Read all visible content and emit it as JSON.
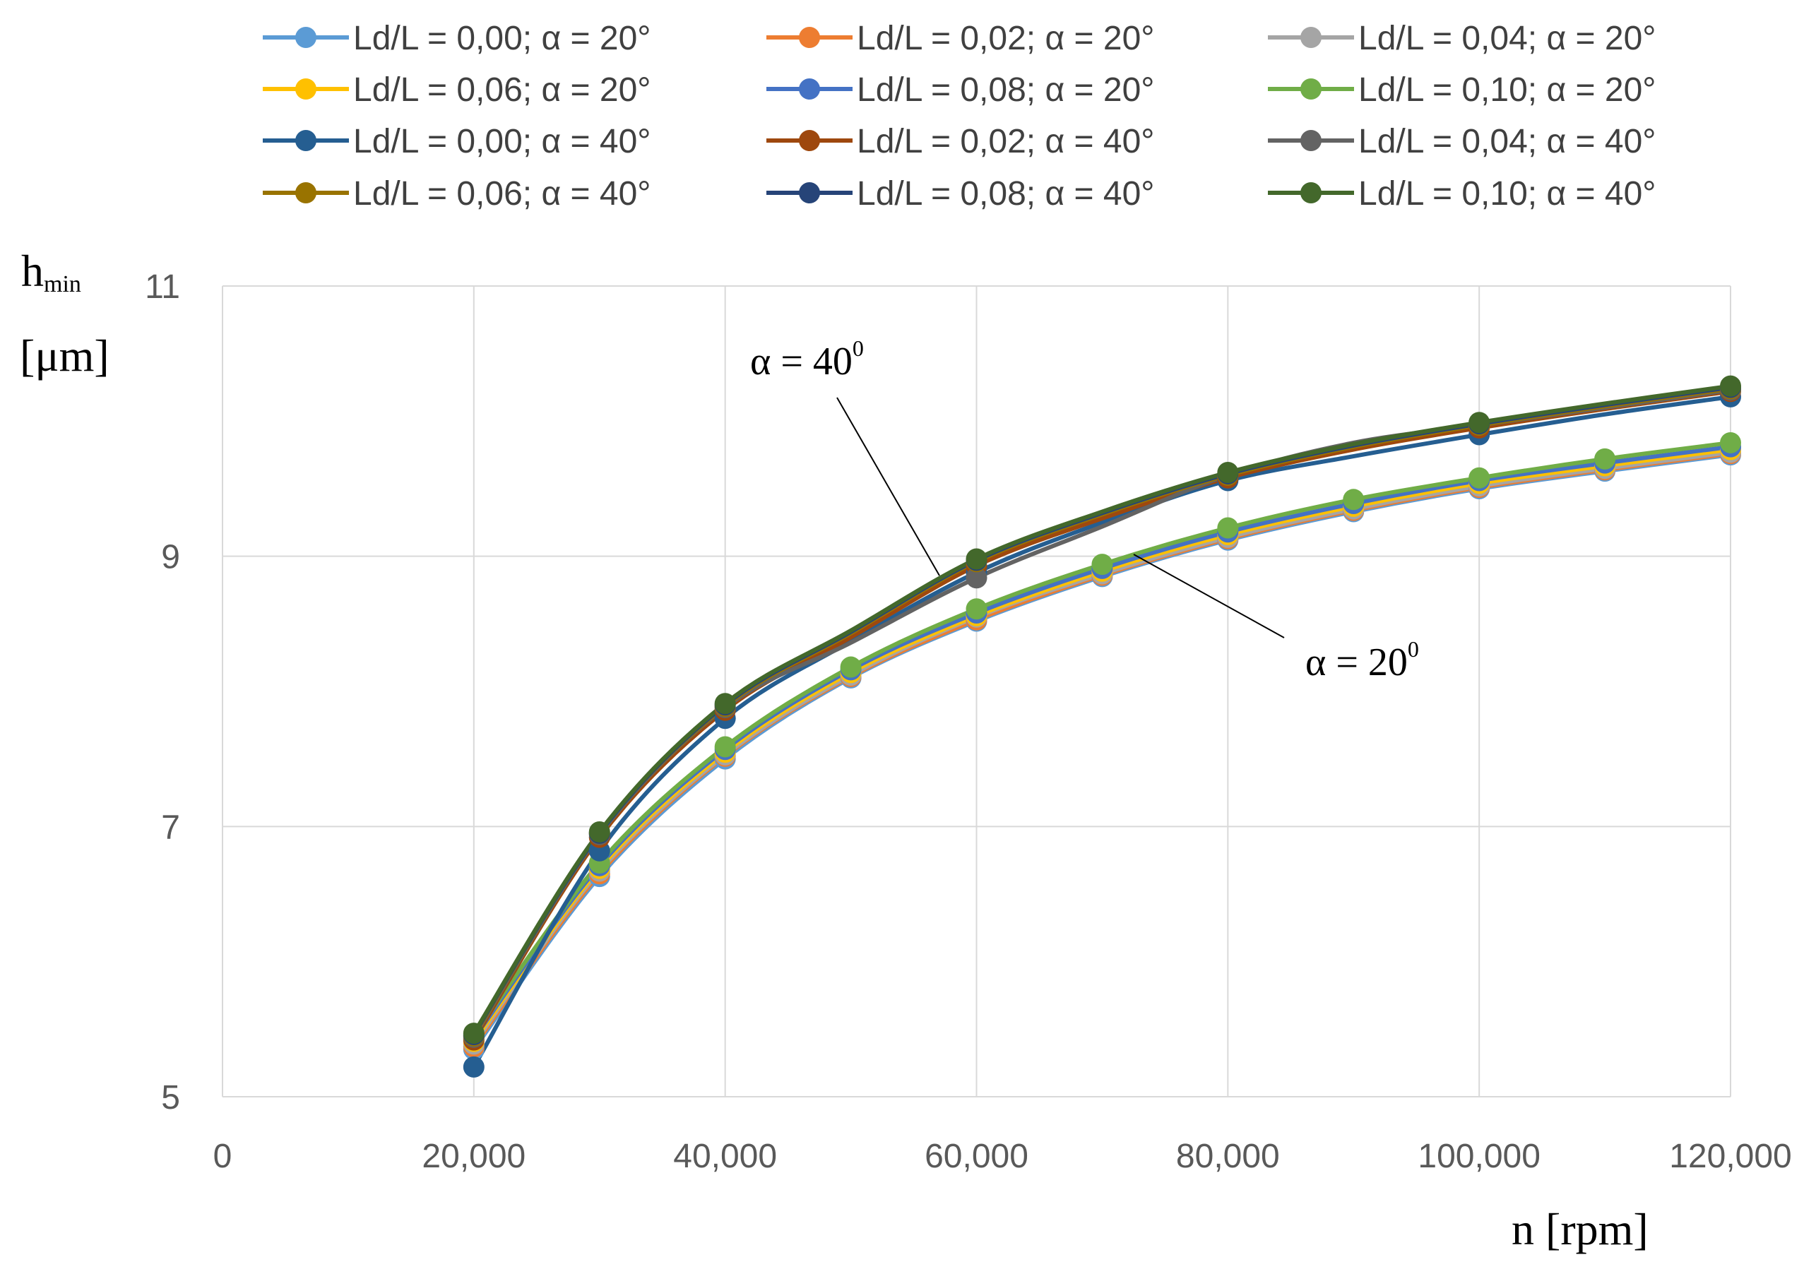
{
  "chart_data": {
    "type": "line",
    "title": "",
    "xlabel": "n [rpm]",
    "ylabel": {
      "main": "h",
      "sub": "min",
      "unit": "[μm]"
    },
    "xlim": [
      0,
      120000
    ],
    "ylim": [
      5,
      11
    ],
    "x_ticks": [
      0,
      20000,
      40000,
      60000,
      80000,
      100000,
      120000
    ],
    "x_tick_labels": [
      "0",
      "20,000",
      "40,000",
      "60,000",
      "80,000",
      "100,000",
      "120,000"
    ],
    "y_ticks": [
      5,
      7,
      9,
      11
    ],
    "y_tick_labels": [
      "5",
      "7",
      "9",
      "11"
    ],
    "grid": true,
    "legend_position": "top",
    "x": [
      20000,
      30000,
      40000,
      50000,
      60000,
      70000,
      80000,
      90000,
      100000,
      110000,
      120000
    ],
    "series": [
      {
        "name": "Ld/L = 0,00; α = 20°",
        "color": "#5B9BD5",
        "values": [
          5.35,
          6.63,
          7.5,
          8.1,
          8.52,
          8.85,
          9.12,
          9.33,
          9.5,
          9.63,
          9.75
        ]
      },
      {
        "name": "Ld/L = 0,02; α = 20°",
        "color": "#ED7D31",
        "values": [
          5.37,
          6.65,
          7.52,
          8.11,
          8.53,
          8.86,
          9.13,
          9.34,
          9.51,
          9.64,
          9.76
        ]
      },
      {
        "name": "Ld/L = 0,04; α = 20°",
        "color": "#A5A5A5",
        "values": [
          5.39,
          6.67,
          7.53,
          8.12,
          8.55,
          8.87,
          9.14,
          9.35,
          9.52,
          9.65,
          9.77
        ]
      },
      {
        "name": "Ld/L = 0,06; α = 20°",
        "color": "#FFC000",
        "values": [
          5.41,
          6.69,
          7.55,
          8.14,
          8.56,
          8.89,
          9.16,
          9.37,
          9.54,
          9.67,
          9.79
        ]
      },
      {
        "name": "Ld/L = 0,08; α = 20°",
        "color": "#4472C4",
        "values": [
          5.43,
          6.71,
          7.57,
          8.16,
          8.58,
          8.91,
          9.18,
          9.39,
          9.56,
          9.69,
          9.81
        ]
      },
      {
        "name": "Ld/L = 0,10; α = 20°",
        "color": "#70AD47",
        "values": [
          5.45,
          6.73,
          7.59,
          8.18,
          8.61,
          8.94,
          9.21,
          9.42,
          9.58,
          9.72,
          9.84
        ]
      },
      {
        "name": "Ld/L = 0,00; α = 40°",
        "color": "#255E91",
        "values": [
          5.22,
          6.82,
          7.8,
          8.37,
          8.88,
          9.25,
          9.56,
          9.74,
          9.9,
          10.05,
          10.18
        ]
      },
      {
        "name": "Ld/L = 0,02; α = 40°",
        "color": "#9E480E",
        "values": [
          5.42,
          6.92,
          7.86,
          8.4,
          8.93,
          9.28,
          9.58,
          9.79,
          9.95,
          10.09,
          10.22
        ]
      },
      {
        "name": "Ld/L = 0,04; α = 40°",
        "color": "#636363",
        "values": [
          5.44,
          6.94,
          7.88,
          8.36,
          8.84,
          9.22,
          9.6,
          9.84,
          9.97,
          10.1,
          10.23
        ]
      },
      {
        "name": "Ld/L = 0,06; α = 40°",
        "color": "#997300",
        "values": [
          5.45,
          6.95,
          7.89,
          8.43,
          8.96,
          9.31,
          9.6,
          9.81,
          9.97,
          10.11,
          10.24
        ]
      },
      {
        "name": "Ld/L = 0,08; α = 40°",
        "color": "#264478",
        "values": [
          5.46,
          6.95,
          7.9,
          8.44,
          8.97,
          9.32,
          9.61,
          9.82,
          9.98,
          10.12,
          10.25
        ]
      },
      {
        "name": "Ld/L = 0,10; α = 40°",
        "color": "#43682B",
        "values": [
          5.47,
          6.96,
          7.91,
          8.45,
          8.98,
          9.33,
          9.62,
          9.83,
          9.99,
          10.13,
          10.26
        ]
      }
    ],
    "marker_x": {
      "Ld/L = 0,00; α = 40°": [
        20000,
        30000,
        40000,
        60000,
        80000,
        100000,
        120000
      ],
      "Ld/L = 0,02; α = 40°": [
        20000,
        30000,
        40000,
        60000,
        80000,
        100000,
        120000
      ],
      "Ld/L = 0,04; α = 40°": [
        20000,
        30000,
        40000,
        60000,
        80000,
        100000,
        120000
      ],
      "Ld/L = 0,06; α = 40°": [
        20000,
        30000,
        40000,
        60000,
        80000,
        100000,
        120000
      ],
      "Ld/L = 0,08; α = 40°": [
        20000,
        30000,
        40000,
        60000,
        80000,
        100000,
        120000
      ],
      "Ld/L = 0,10; α = 40°": [
        20000,
        30000,
        40000,
        60000,
        80000,
        100000,
        120000
      ]
    },
    "annotations": [
      {
        "label": "α = 40",
        "sup": "0",
        "target": [
          57000,
          8.88
        ]
      },
      {
        "label": "α = 20",
        "sup": "0",
        "target": [
          72000,
          8.86
        ]
      }
    ]
  }
}
